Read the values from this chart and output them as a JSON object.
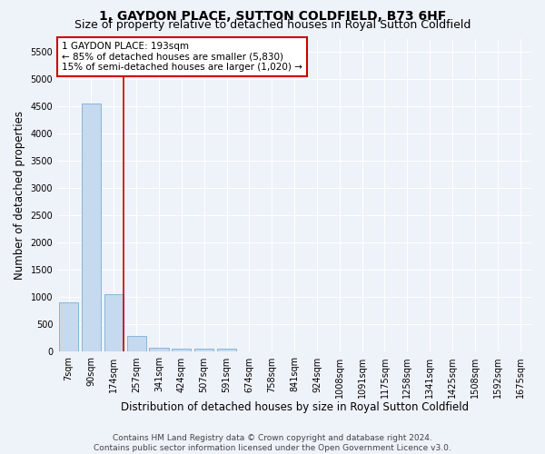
{
  "title": "1, GAYDON PLACE, SUTTON COLDFIELD, B73 6HF",
  "subtitle": "Size of property relative to detached houses in Royal Sutton Coldfield",
  "xlabel": "Distribution of detached houses by size in Royal Sutton Coldfield",
  "ylabel": "Number of detached properties",
  "footer_line1": "Contains HM Land Registry data © Crown copyright and database right 2024.",
  "footer_line2": "Contains public sector information licensed under the Open Government Licence v3.0.",
  "bar_labels": [
    "7sqm",
    "90sqm",
    "174sqm",
    "257sqm",
    "341sqm",
    "424sqm",
    "507sqm",
    "591sqm",
    "674sqm",
    "758sqm",
    "841sqm",
    "924sqm",
    "1008sqm",
    "1091sqm",
    "1175sqm",
    "1258sqm",
    "1341sqm",
    "1425sqm",
    "1508sqm",
    "1592sqm",
    "1675sqm"
  ],
  "bar_values": [
    900,
    4550,
    1060,
    290,
    80,
    60,
    55,
    60,
    0,
    0,
    0,
    0,
    0,
    0,
    0,
    0,
    0,
    0,
    0,
    0,
    0
  ],
  "bar_color": "#c5d9ef",
  "bar_edge_color": "#7aadd4",
  "ylim": [
    0,
    5750
  ],
  "yticks": [
    0,
    500,
    1000,
    1500,
    2000,
    2500,
    3000,
    3500,
    4000,
    4500,
    5000,
    5500
  ],
  "red_line_x": 2.0,
  "red_line_color": "#cc0000",
  "annotation_text": "1 GAYDON PLACE: 193sqm\n← 85% of detached houses are smaller (5,830)\n15% of semi-detached houses are larger (1,020) →",
  "annotation_box_color": "#ffffff",
  "annotation_box_edge_color": "#cc0000",
  "background_color": "#eef2f9",
  "grid_color": "#ffffff",
  "title_fontsize": 10,
  "subtitle_fontsize": 9,
  "annotation_fontsize": 7.5,
  "tick_fontsize": 7,
  "ylabel_fontsize": 8.5,
  "xlabel_fontsize": 8.5,
  "footer_fontsize": 6.5
}
